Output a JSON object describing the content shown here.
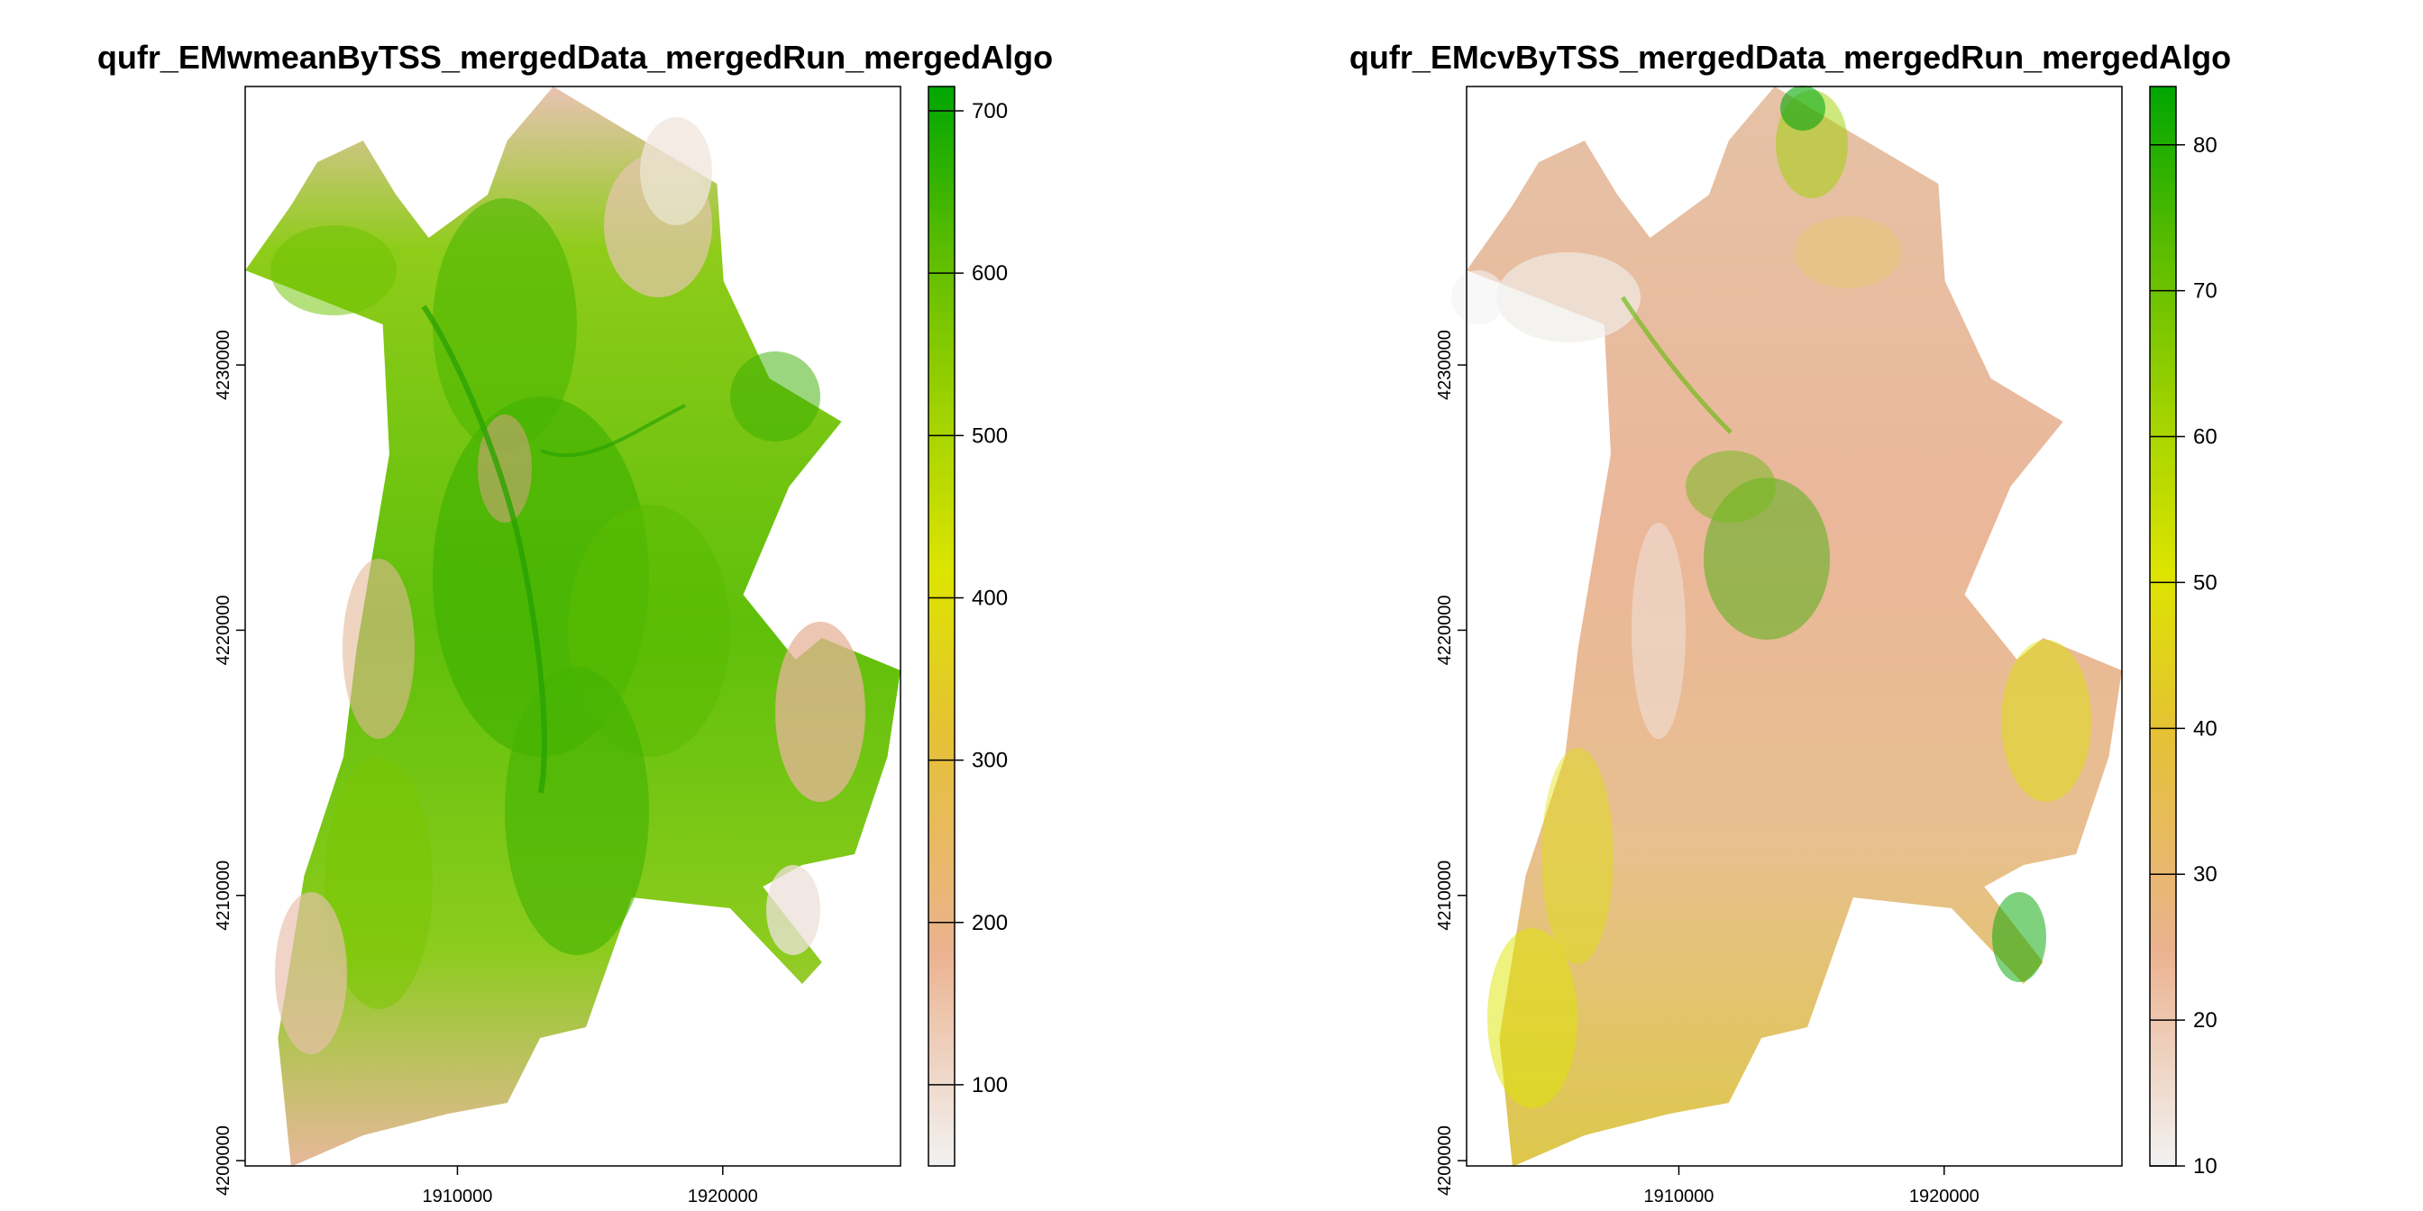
{
  "chart_data": [
    {
      "type": "heatmap",
      "title": "qufr_EMwmeanByTSS_mergedData_mergedRun_mergedAlgo",
      "xlabel": "",
      "ylabel": "",
      "x_ticks": [
        1910000,
        1920000
      ],
      "x_tick_labels": [
        "1910000",
        "1920000"
      ],
      "y_ticks": [
        4200000,
        4210000,
        4220000,
        4230000
      ],
      "y_tick_labels": [
        "4200000",
        "4210000",
        "4220000",
        "4230000"
      ],
      "xlim": [
        1902000,
        1926700
      ],
      "ylim": [
        4199800,
        4240500
      ],
      "legend": {
        "placement": "right",
        "min": 50,
        "max": 715,
        "ticks": [
          100,
          200,
          300,
          400,
          500,
          600,
          700
        ],
        "tick_labels": [
          "100",
          "200",
          "300",
          "400",
          "500",
          "600",
          "700"
        ]
      },
      "colors": [
        "#f2f2f2",
        "#ebb28f",
        "#e5c135",
        "#dde400",
        "#9fd200",
        "#5bbc00",
        "#00a600"
      ]
    },
    {
      "type": "heatmap",
      "title": "qufr_EMcvByTSS_mergedData_mergedRun_mergedAlgo",
      "xlabel": "",
      "ylabel": "",
      "x_ticks": [
        1910000,
        1920000
      ],
      "x_tick_labels": [
        "1910000",
        "1920000"
      ],
      "y_ticks": [
        4200000,
        4210000,
        4220000,
        4230000
      ],
      "y_tick_labels": [
        "4200000",
        "4210000",
        "4220000",
        "4230000"
      ],
      "xlim": [
        1902000,
        1926700
      ],
      "ylim": [
        4199800,
        4240500
      ],
      "legend": {
        "placement": "right",
        "min": 10,
        "max": 84,
        "ticks": [
          10,
          20,
          30,
          40,
          50,
          60,
          70,
          80
        ],
        "tick_labels": [
          "10",
          "20",
          "30",
          "40",
          "50",
          "60",
          "70",
          "80"
        ]
      },
      "colors": [
        "#f2f2f2",
        "#ebb28f",
        "#e5c135",
        "#dde400",
        "#9fd200",
        "#5bbc00",
        "#00a600"
      ]
    }
  ]
}
